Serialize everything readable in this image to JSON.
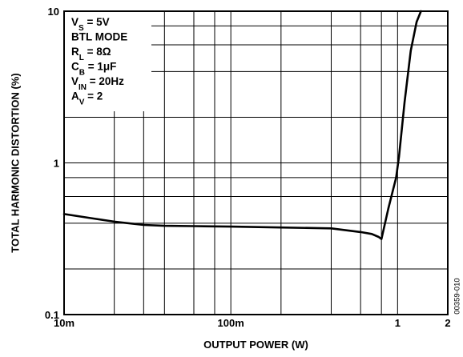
{
  "chart_data": {
    "type": "line",
    "xlabel": "OUTPUT POWER (W)",
    "ylabel": "TOTAL HARMONIC DISTORTION (%)",
    "x_scale": "log",
    "y_scale": "log",
    "xlim": [
      0.01,
      2
    ],
    "ylim": [
      0.1,
      10
    ],
    "x_ticks": [
      {
        "value": 0.01,
        "label": "10m"
      },
      {
        "value": 0.1,
        "label": "100m"
      },
      {
        "value": 1,
        "label": "1"
      },
      {
        "value": 2,
        "label": "2"
      }
    ],
    "y_ticks": [
      {
        "value": 0.1,
        "label": "0.1"
      },
      {
        "value": 1,
        "label": "1"
      },
      {
        "value": 10,
        "label": "10"
      }
    ],
    "x_grid": [
      0.02,
      0.03,
      0.04,
      0.06,
      0.08,
      0.2,
      0.4,
      0.6,
      0.8
    ],
    "y_grid": [
      0.2,
      0.4,
      0.6,
      0.8,
      2,
      4,
      6,
      8
    ],
    "grid": true,
    "legend": {
      "placement": "top-left",
      "lines": [
        {
          "main": "V",
          "sub": "S",
          "rest": " = 5V"
        },
        {
          "main": "BTL MODE",
          "sub": "",
          "rest": ""
        },
        {
          "main": "R",
          "sub": "L",
          "rest": " = 8Ω"
        },
        {
          "main": "C",
          "sub": "B",
          "rest": " = 1μF"
        },
        {
          "main": "V",
          "sub": "IN",
          "rest": " = 20Hz"
        },
        {
          "main": "A",
          "sub": "V",
          "rest": " = 2"
        }
      ]
    },
    "series": [
      {
        "x": [
          0.01,
          0.015,
          0.02,
          0.03,
          0.04,
          0.06,
          0.1,
          0.2,
          0.4,
          0.6,
          0.7,
          0.77,
          0.8,
          0.88,
          0.98,
          1.02,
          1.1,
          1.2,
          1.3,
          1.38
        ],
        "y": [
          0.46,
          0.43,
          0.41,
          0.39,
          0.385,
          0.383,
          0.38,
          0.375,
          0.37,
          0.35,
          0.34,
          0.325,
          0.315,
          0.5,
          0.8,
          1.1,
          2.5,
          5.5,
          8.5,
          10
        ]
      }
    ],
    "figure_id": "00359-010"
  }
}
